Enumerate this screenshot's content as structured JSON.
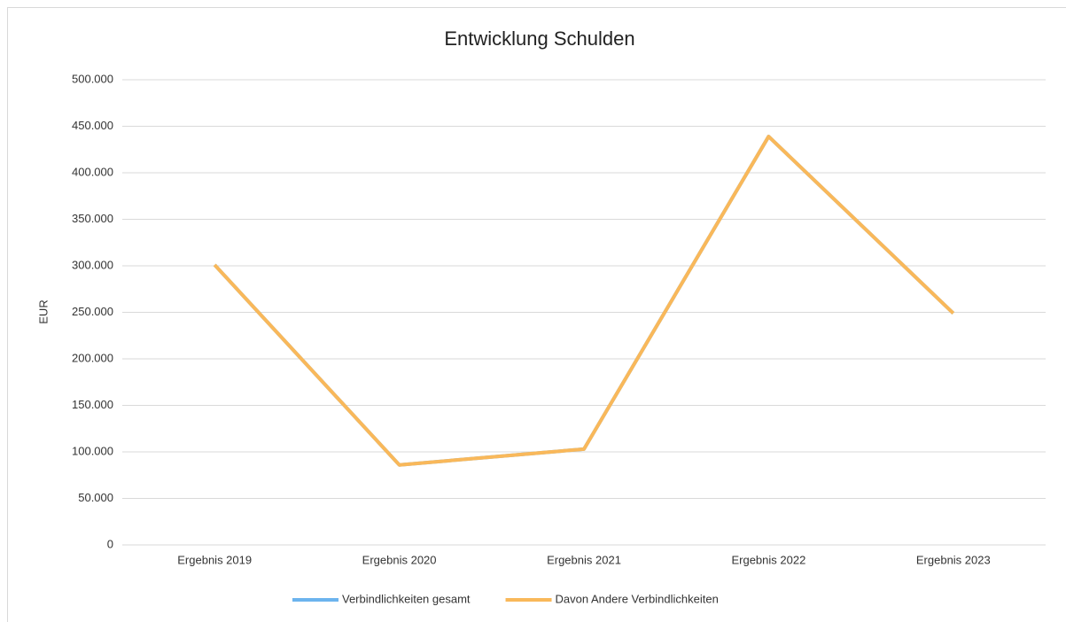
{
  "chart_data": {
    "type": "line",
    "title": "Entwicklung Schulden",
    "y_label": "EUR",
    "categories": [
      "Ergebnis 2019",
      "Ergebnis 2020",
      "Ergebnis 2021",
      "Ergebnis 2022",
      "Ergebnis 2023"
    ],
    "series": [
      {
        "name": "Verbindlichkeiten gesamt",
        "color": "#6cb4ee",
        "values": [
          301000,
          86000,
          103000,
          439000,
          249000
        ]
      },
      {
        "name": "Davon Andere Verbindlichkeiten",
        "color": "#f9b85a",
        "values": [
          301000,
          86000,
          103000,
          439000,
          249000
        ]
      }
    ],
    "ylim": [
      0,
      500000
    ],
    "yticks": [
      0,
      {
        "value": 50000,
        "label": "50.000"
      },
      {
        "value": 100000,
        "label": "100.000"
      },
      {
        "value": 150000,
        "label": "150.000"
      },
      {
        "value": 200000,
        "label": "200.000"
      },
      {
        "value": 250000,
        "label": "250.000"
      },
      {
        "value": 300000,
        "label": "300.000"
      },
      {
        "value": 350000,
        "label": "350.000"
      },
      {
        "value": 400000,
        "label": "400.000"
      },
      {
        "value": 450000,
        "label": "450.000"
      },
      {
        "value": 500000,
        "label": "500.000"
      }
    ],
    "grid": true,
    "legend": "bottom"
  }
}
